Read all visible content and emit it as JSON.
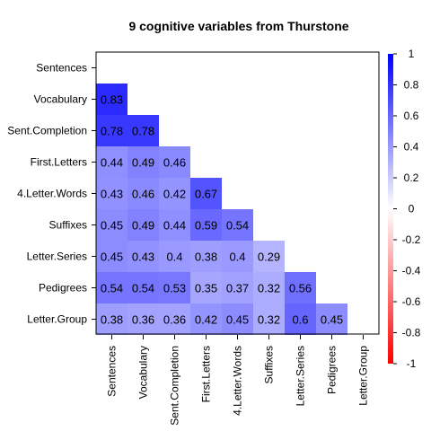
{
  "chart_data": {
    "type": "heatmap",
    "title": "9 cognitive variables from Thurstone",
    "variables": [
      "Sentences",
      "Vocabulary",
      "Sent.Completion",
      "First.Letters",
      "4.Letter.Words",
      "Suffixes",
      "Letter.Series",
      "Pedigrees",
      "Letter.Group"
    ],
    "lower_triangle": [
      [],
      [
        0.83
      ],
      [
        0.78,
        0.78
      ],
      [
        0.44,
        0.49,
        0.46
      ],
      [
        0.43,
        0.46,
        0.42,
        0.67
      ],
      [
        0.45,
        0.49,
        0.44,
        0.59,
        0.54
      ],
      [
        0.45,
        0.43,
        0.4,
        0.38,
        0.4,
        0.29
      ],
      [
        0.54,
        0.54,
        0.53,
        0.35,
        0.37,
        0.32,
        0.56
      ],
      [
        0.38,
        0.36,
        0.36,
        0.42,
        0.45,
        0.32,
        0.6,
        0.45
      ]
    ],
    "value_labels": [
      [],
      [
        "0.83"
      ],
      [
        "0.78",
        "0.78"
      ],
      [
        "0.44",
        "0.49",
        "0.46"
      ],
      [
        "0.43",
        "0.46",
        "0.42",
        "0.67"
      ],
      [
        "0.45",
        "0.49",
        "0.44",
        "0.59",
        "0.54"
      ],
      [
        "0.45",
        "0.43",
        "0.4",
        "0.38",
        "0.4",
        "0.29"
      ],
      [
        "0.54",
        "0.54",
        "0.53",
        "0.35",
        "0.37",
        "0.32",
        "0.56"
      ],
      [
        "0.38",
        "0.36",
        "0.36",
        "0.42",
        "0.45",
        "0.32",
        "0.6",
        "0.45"
      ]
    ],
    "color_scale": {
      "min": -1,
      "max": 1,
      "low_color": "#ff0000",
      "mid_color": "#ffffff",
      "high_color": "#0000ff",
      "ticks": [
        1,
        0.8,
        0.6,
        0.4,
        0.2,
        0,
        -0.2,
        -0.4,
        -0.6,
        -0.8,
        -1
      ],
      "tick_labels": [
        "1",
        "0.8",
        "0.6",
        "0.4",
        "0.2",
        "0",
        "-0.2",
        "-0.4",
        "-0.6",
        "-0.8",
        "-1"
      ]
    },
    "legend": "right",
    "grid": false
  }
}
